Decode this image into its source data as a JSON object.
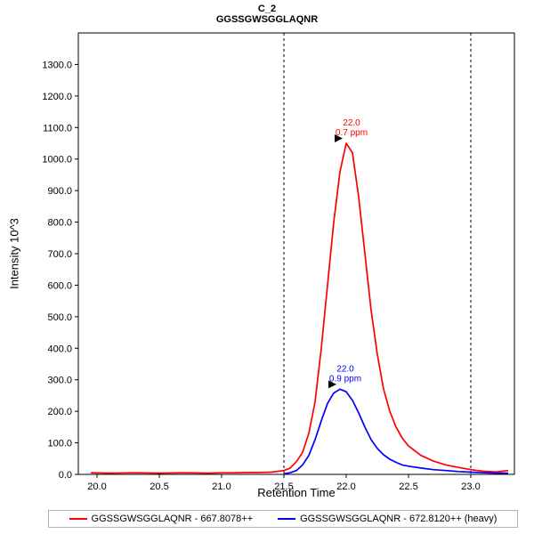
{
  "chart_data": {
    "type": "line",
    "title": "C_2",
    "subtitle": "GGSSGWSGGLAQNR",
    "xlabel": "Retention Time",
    "ylabel": "Intensity 10^3",
    "xlim": [
      19.85,
      23.35
    ],
    "ylim": [
      0,
      1400
    ],
    "x_ticks": [
      20.0,
      20.5,
      21.0,
      21.5,
      22.0,
      22.5,
      23.0
    ],
    "y_ticks": [
      0,
      100,
      200,
      300,
      400,
      500,
      600,
      700,
      800,
      900,
      1000,
      1100,
      1200,
      1300
    ],
    "grid": false,
    "legend_position": "bottom",
    "integration_boundaries": [
      21.5,
      23.0
    ],
    "series": [
      {
        "name": "GGSSGWSGGLAQNR - 667.8078++",
        "color": "#ff0000",
        "x": [
          19.95,
          20.1,
          20.3,
          20.5,
          20.7,
          20.9,
          21.0,
          21.1,
          21.2,
          21.3,
          21.4,
          21.5,
          21.55,
          21.6,
          21.65,
          21.7,
          21.75,
          21.8,
          21.85,
          21.9,
          21.95,
          22.0,
          22.05,
          22.1,
          22.15,
          22.2,
          22.25,
          22.3,
          22.35,
          22.4,
          22.45,
          22.5,
          22.6,
          22.7,
          22.8,
          22.9,
          23.0,
          23.1,
          23.2,
          23.25,
          23.3
        ],
        "y": [
          5,
          4,
          5,
          4,
          5,
          4,
          5,
          5,
          6,
          6,
          7,
          12,
          20,
          40,
          70,
          130,
          230,
          400,
          600,
          800,
          960,
          1050,
          1020,
          880,
          700,
          520,
          380,
          270,
          200,
          150,
          115,
          90,
          60,
          42,
          30,
          22,
          15,
          10,
          8,
          10,
          12
        ],
        "annotation": {
          "rt_label": "22.0",
          "ppm_label": "0.7 ppm",
          "apex_x": 22.0,
          "apex_y": 1050
        }
      },
      {
        "name": "GGSSGWSGGLAQNR - 672.8120++ (heavy)",
        "color": "#0000ff",
        "x": [
          21.5,
          21.55,
          21.6,
          21.65,
          21.7,
          21.75,
          21.8,
          21.85,
          21.9,
          21.95,
          22.0,
          22.05,
          22.1,
          22.15,
          22.2,
          22.25,
          22.3,
          22.35,
          22.4,
          22.45,
          22.5,
          22.6,
          22.7,
          22.8,
          22.9,
          23.0,
          23.1,
          23.2,
          23.3
        ],
        "y": [
          2,
          5,
          12,
          30,
          60,
          110,
          170,
          225,
          258,
          270,
          262,
          235,
          195,
          150,
          110,
          82,
          62,
          48,
          38,
          30,
          26,
          20,
          15,
          12,
          9,
          7,
          5,
          4,
          4
        ],
        "annotation": {
          "rt_label": "22.0",
          "ppm_label": "0.9 ppm",
          "apex_x": 21.95,
          "apex_y": 270
        }
      }
    ]
  }
}
